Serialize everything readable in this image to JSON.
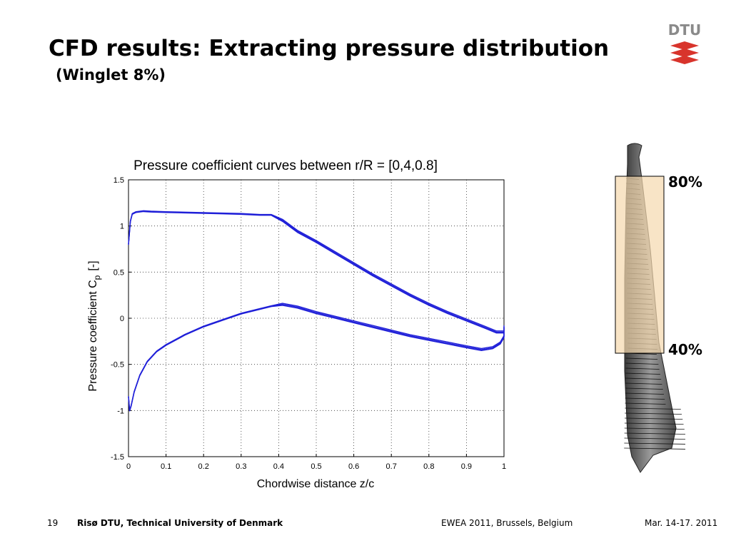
{
  "slide": {
    "title": "CFD results: Extracting pressure distribution",
    "subtitle": "(Winglet 8%)",
    "logo_text": "DTU"
  },
  "blade_figure": {
    "label_top": "80%",
    "label_bottom": "40%"
  },
  "footer": {
    "page_number": "19",
    "organization": "Risø DTU, Technical University of Denmark",
    "event": "EWEA 2011, Brussels, Belgium",
    "date": "Mar. 14-17. 2011"
  },
  "colors": {
    "curve": "#1f1fd8",
    "grid": "#333333",
    "highlight_fill": "#f5d9ae",
    "logo_red": "#d8342c",
    "logo_grey": "#8a8a8a"
  },
  "chart_data": {
    "type": "line",
    "title": "Pressure coefficient curves between r/R = [0,4,0.8]",
    "xlabel": "Chordwise distance z/c",
    "ylabel": "Pressure coefficient C",
    "ylabel_sub": "p",
    "ylabel_unit": "[-]",
    "xlim": [
      0,
      1
    ],
    "ylim": [
      -1.5,
      1.5
    ],
    "xticks": [
      0,
      0.1,
      0.2,
      0.3,
      0.4,
      0.5,
      0.6,
      0.7,
      0.8,
      0.9,
      1
    ],
    "xtick_labels": [
      "0",
      "0.1",
      "0.2",
      "0.3",
      "0.4",
      "0.5",
      "0.6",
      "0.7",
      "0.8",
      "0.9",
      "1"
    ],
    "yticks": [
      1.5,
      1,
      0.5,
      0,
      -0.5,
      -1,
      -1.5
    ],
    "ytick_labels": [
      "1.5",
      "1",
      "0.5",
      "0",
      "-0.5",
      "-1",
      "-1.5"
    ],
    "grid": true,
    "series": [
      {
        "x": [
          0,
          0.005,
          0.01,
          0.02,
          0.04,
          0.06,
          0.1,
          0.15,
          0.2,
          0.25,
          0.3,
          0.35,
          0.38,
          0.41,
          0.45,
          0.5,
          0.55,
          0.6,
          0.65,
          0.7,
          0.75,
          0.8,
          0.85,
          0.9,
          0.95,
          0.98,
          1.0
        ],
        "y": [
          0.8,
          1.05,
          1.13,
          1.15,
          1.16,
          1.155,
          1.15,
          1.145,
          1.14,
          1.135,
          1.13,
          1.12,
          1.12,
          1.06,
          0.94,
          0.83,
          0.71,
          0.59,
          0.47,
          0.36,
          0.25,
          0.15,
          0.06,
          -0.02,
          -0.1,
          -0.15,
          -0.15
        ]
      },
      {
        "x": [
          0,
          0.003,
          0.007,
          0.015,
          0.03,
          0.05,
          0.075,
          0.1,
          0.15,
          0.2,
          0.25,
          0.3,
          0.35,
          0.38,
          0.41,
          0.45,
          0.5,
          0.55,
          0.6,
          0.65,
          0.7,
          0.75,
          0.8,
          0.85,
          0.9,
          0.94,
          0.97,
          0.99,
          1.0,
          1.0
        ],
        "y": [
          -0.85,
          -1.0,
          -0.95,
          -0.8,
          -0.62,
          -0.47,
          -0.36,
          -0.29,
          -0.18,
          -0.09,
          -0.02,
          0.05,
          0.1,
          0.13,
          0.15,
          0.12,
          0.06,
          0.01,
          -0.04,
          -0.09,
          -0.14,
          -0.19,
          -0.23,
          -0.27,
          -0.31,
          -0.34,
          -0.32,
          -0.27,
          -0.2,
          -0.09
        ]
      }
    ]
  }
}
